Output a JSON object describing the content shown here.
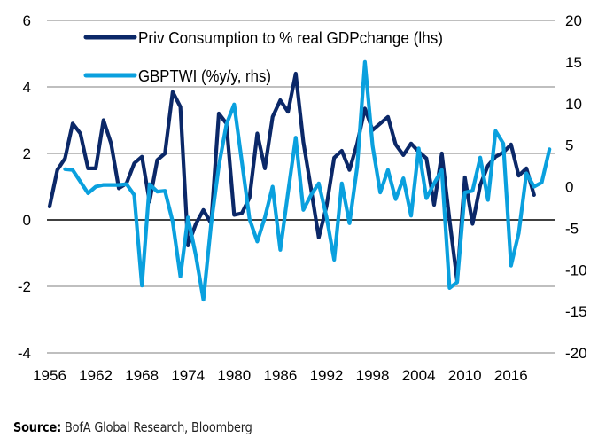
{
  "chart_data": {
    "type": "line",
    "title": "",
    "xlabel": "",
    "ylabel_left": "",
    "ylabel_right": "",
    "x_ticks": [
      "1956",
      "1962",
      "1968",
      "1974",
      "1980",
      "1986",
      "1992",
      "1998",
      "2004",
      "2010",
      "2016"
    ],
    "x_range": [
      1956,
      2021
    ],
    "y_left": {
      "range": [
        -4,
        6
      ],
      "ticks": [
        "6",
        "4",
        "2",
        "0",
        "-2",
        "-4"
      ],
      "tick_values": [
        6,
        4,
        2,
        0,
        -2,
        -4
      ]
    },
    "y_right": {
      "range": [
        -20,
        20
      ],
      "ticks": [
        "20",
        "15",
        "10",
        "5",
        "0",
        "-5",
        "-10",
        "-15",
        "-20"
      ],
      "tick_values": [
        20,
        15,
        10,
        5,
        0,
        -5,
        -10,
        -15,
        -20
      ]
    },
    "grid": true,
    "legend_position": "top-left",
    "series": [
      {
        "name": "Priv Consumption to % real GDPchange (lhs)",
        "axis": "left",
        "color": "#0b2868",
        "start_year": 1956,
        "values": [
          0.4,
          1.5,
          1.85,
          2.9,
          2.6,
          1.55,
          1.55,
          3.0,
          2.3,
          0.95,
          1.1,
          1.7,
          1.9,
          0.55,
          1.8,
          2.0,
          3.85,
          3.4,
          -0.77,
          -0.13,
          0.3,
          -0.1,
          3.2,
          2.9,
          0.15,
          0.2,
          0.67,
          2.6,
          1.55,
          3.1,
          3.6,
          3.25,
          4.4,
          2.35,
          0.93,
          -0.53,
          0.4,
          1.87,
          2.08,
          1.5,
          2.3,
          3.35,
          2.7,
          2.9,
          3.1,
          2.27,
          1.95,
          2.3,
          2.05,
          1.85,
          0.45,
          2.0,
          0.0,
          -1.83,
          1.28,
          -0.12,
          1.05,
          1.63,
          1.9,
          2.03,
          2.27,
          1.33,
          1.55,
          0.75
        ]
      },
      {
        "name": "GBPTWI (%y/y, rhs)",
        "axis": "right",
        "color": "#0aa0de",
        "start_year": 1958,
        "values": [
          2.1,
          2.0,
          0.6,
          -0.8,
          0.0,
          0.2,
          0.2,
          0.2,
          0.3,
          -1.0,
          -11.9,
          0.3,
          -0.6,
          -0.5,
          -4.2,
          -10.8,
          -3.7,
          -8.2,
          -13.6,
          -4.5,
          2.5,
          7.5,
          9.9,
          3.0,
          -3.9,
          -6.6,
          -3.7,
          0.0,
          -7.6,
          -0.7,
          5.9,
          -2.8,
          -1.0,
          0.4,
          -3.6,
          -8.8,
          0.4,
          -4.4,
          2.4,
          15.0,
          4.9,
          -0.7,
          2.0,
          -1.5,
          1.0,
          -3.5,
          4.6,
          -1.4,
          0.4,
          2.0,
          -12.2,
          -11.5,
          -0.7,
          -0.5,
          3.5,
          -1.6,
          6.7,
          5.2,
          -9.5,
          -5.6,
          1.6,
          0.0,
          0.5,
          4.5
        ]
      }
    ]
  },
  "source": {
    "label": "Source:",
    "text": " BofA Global Research, Bloomberg"
  }
}
